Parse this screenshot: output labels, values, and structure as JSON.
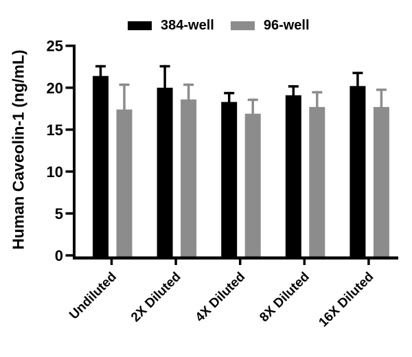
{
  "chart_data": {
    "type": "bar",
    "title": "",
    "ylabel": "Human Caveolin-1 (ng/mL)",
    "xlabel": "",
    "categories": [
      "Undiluted",
      "2X Diluted",
      "4X Diluted",
      "8X Diluted",
      "16X Diluted"
    ],
    "series": [
      {
        "name": "384-well",
        "color": "#000000",
        "values": [
          21.4,
          20.0,
          18.3,
          19.1,
          20.2
        ],
        "errors_up": [
          1.3,
          2.7,
          1.2,
          1.2,
          1.7
        ]
      },
      {
        "name": "96-well",
        "color": "#8C8C8C",
        "values": [
          17.4,
          18.6,
          16.9,
          17.7,
          17.7
        ],
        "errors_up": [
          3.1,
          1.9,
          1.8,
          1.9,
          2.2
        ]
      }
    ],
    "y_ticks": [
      0,
      5,
      10,
      15,
      20,
      25
    ],
    "ylim": [
      0,
      25
    ],
    "grid": false,
    "legend_position": "top-center",
    "error_bars": "upper-only",
    "x_label_rotation_deg": 45
  },
  "colors": {
    "background": "#FFFFFF",
    "axis": "#000000",
    "text": "#000000",
    "bar_384_well": "#000000",
    "bar_96_well": "#8C8C8C"
  }
}
